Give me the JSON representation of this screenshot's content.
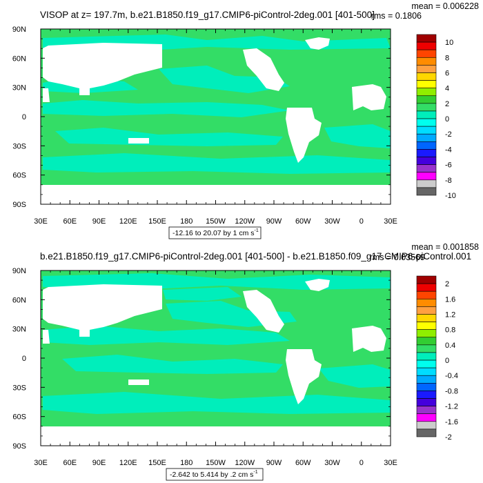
{
  "chart_data": [
    {
      "type": "heatmap",
      "title": "VISOP at z= 197.7m, b.e21.B1850.f19_g17.CMIP6-piControl-2deg.001 [401-500]",
      "stats": {
        "mean": "mean = 0.006228",
        "rms": "rms = 0.1806"
      },
      "range_label": "-12.16 to 20.07 by 1 cm s",
      "range_units_sup": "-1",
      "x_ticks": [
        "30E",
        "60E",
        "90E",
        "120E",
        "150E",
        "180",
        "150W",
        "120W",
        "90W",
        "60W",
        "30W",
        "0",
        "30E"
      ],
      "y_ticks": [
        "90N",
        "60N",
        "30N",
        "0",
        "30S",
        "60S",
        "90S"
      ],
      "colorbar": {
        "labels": [
          "10",
          "8",
          "6",
          "4",
          "2",
          "0",
          "-2",
          "-4",
          "-6",
          "-8",
          "-10"
        ],
        "colors": [
          "#a00000",
          "#ee0000",
          "#ff4500",
          "#ff8c00",
          "#ffa040",
          "#ffd700",
          "#ffff00",
          "#90ee00",
          "#32cd32",
          "#33dd66",
          "#00eebb",
          "#00ffee",
          "#00ddff",
          "#00aaff",
          "#0066ff",
          "#1a1aff",
          "#4400dd",
          "#9933cc",
          "#ff00ff",
          "#cccccc",
          "#666666"
        ]
      },
      "fill_colors": {
        "ocean": "#33dd66",
        "cool": "#00eebb",
        "land": "#ffffff"
      }
    },
    {
      "type": "heatmap",
      "title": "b.e21.B1850.f19_g17.CMIP6-piControl-2deg.001 [401-500] - b.e21.B1850.f09_g17.CMIP6-piControl.001",
      "stats": {
        "mean": "mean = 0.001858",
        "rms": "rms = 0.03569"
      },
      "range_label": "-2.642 to 5.414 by .2 cm s",
      "range_units_sup": "-1",
      "x_ticks": [
        "30E",
        "60E",
        "90E",
        "120E",
        "150E",
        "180",
        "150W",
        "120W",
        "90W",
        "60W",
        "30W",
        "0",
        "30E"
      ],
      "y_ticks": [
        "90N",
        "60N",
        "30N",
        "0",
        "30S",
        "60S",
        "90S"
      ],
      "colorbar": {
        "labels": [
          "2",
          "1.6",
          "1.2",
          "0.8",
          "0.4",
          "0",
          "-0.4",
          "-0.8",
          "-1.2",
          "-1.6",
          "-2"
        ],
        "colors": [
          "#a00000",
          "#ee0000",
          "#ff4500",
          "#ff8c00",
          "#ffa040",
          "#ffd700",
          "#ffff00",
          "#90ee00",
          "#32cd32",
          "#33dd66",
          "#00eebb",
          "#00ffee",
          "#00ddff",
          "#00aaff",
          "#0066ff",
          "#1a1aff",
          "#4400dd",
          "#9933cc",
          "#ff00ff",
          "#cccccc",
          "#666666"
        ]
      },
      "fill_colors": {
        "ocean": "#33dd66",
        "cool": "#00eebb",
        "land": "#ffffff"
      }
    }
  ]
}
